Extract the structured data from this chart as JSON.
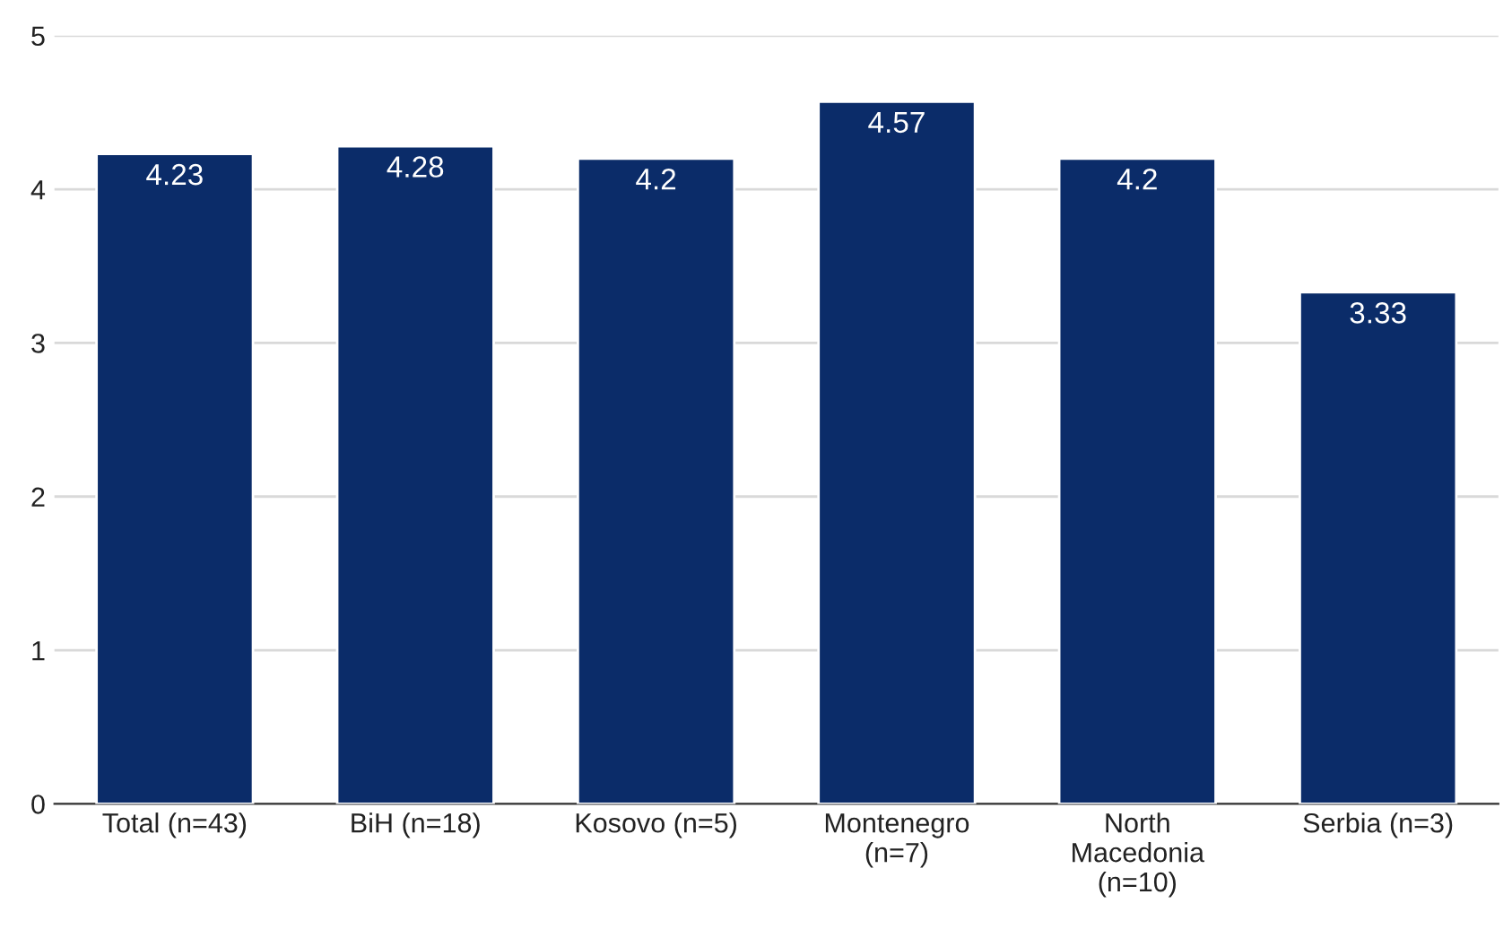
{
  "chart_data": {
    "type": "bar",
    "categories": [
      "Total (n=43)",
      "BiH (n=18)",
      "Kosovo (n=5)",
      "Montenegro\n(n=7)",
      "North\nMacedonia\n(n=10)",
      "Serbia (n=3)"
    ],
    "values": [
      4.23,
      4.28,
      4.2,
      4.57,
      4.2,
      3.33
    ],
    "color": "#0b2c69",
    "ylim": [
      0,
      5
    ],
    "yticks": [
      0,
      1,
      2,
      3,
      4,
      5
    ],
    "grid": "y",
    "data_labels": true
  }
}
